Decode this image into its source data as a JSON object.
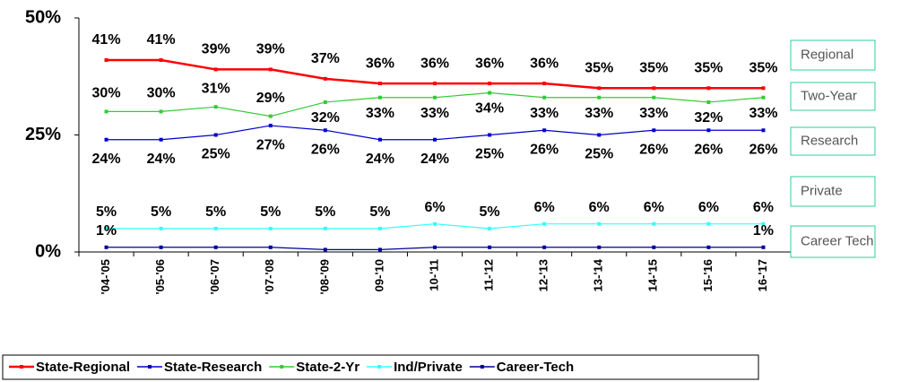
{
  "chart_data": {
    "type": "line",
    "categories": [
      "'04-'05",
      "'05-'06",
      "'06-'07",
      "'07-'08",
      "'08-'09",
      "09-'10",
      "10-'11",
      "11-'12",
      "12-'13",
      "13-'14",
      "14-'15",
      "15-'16",
      "16-'17"
    ],
    "series": [
      {
        "name": "State-Regional",
        "color": "#ff0000",
        "values": [
          41,
          41,
          39,
          39,
          37,
          36,
          36,
          36,
          36,
          35,
          35,
          35,
          35
        ],
        "value_labels": [
          "41%",
          "41%",
          "39%",
          "39%",
          "37%",
          "36%",
          "36%",
          "36%",
          "36%",
          "35%",
          "35%",
          "35%",
          "35%"
        ]
      },
      {
        "name": "State-Research",
        "color": "#0000cc",
        "values": [
          24,
          24,
          25,
          27,
          26,
          24,
          24,
          25,
          26,
          25,
          26,
          26,
          26
        ],
        "value_labels": [
          "24%",
          "24%",
          "25%",
          "27%",
          "26%",
          "24%",
          "24%",
          "25%",
          "26%",
          "25%",
          "26%",
          "26%",
          "26%"
        ]
      },
      {
        "name": "State-2-Yr",
        "color": "#33cc33",
        "values": [
          30,
          30,
          31,
          29,
          32,
          33,
          33,
          34,
          33,
          33,
          33,
          32,
          33
        ],
        "value_labels": [
          "30%",
          "30%",
          "31%",
          "29%",
          "32%",
          "33%",
          "33%",
          "34%",
          "33%",
          "33%",
          "33%",
          "32%",
          "33%"
        ]
      },
      {
        "name": "Ind/Private",
        "color": "#33ffff",
        "values": [
          5,
          5,
          5,
          5,
          5,
          5,
          6,
          5,
          6,
          6,
          6,
          6,
          6
        ],
        "value_labels": [
          "5%",
          "5%",
          "5%",
          "5%",
          "5%",
          "5%",
          "6%",
          "5%",
          "6%",
          "6%",
          "6%",
          "6%",
          "6%"
        ]
      },
      {
        "name": "Career-Tech",
        "color": "#000099",
        "values": [
          1,
          1,
          1,
          1,
          0.5,
          0.5,
          1,
          1,
          1,
          1,
          1,
          1,
          1
        ],
        "value_labels": [
          "1%",
          null,
          null,
          null,
          null,
          null,
          null,
          null,
          null,
          null,
          null,
          null,
          "1%"
        ]
      }
    ],
    "annotations": [
      "Regional",
      "Two-Year",
      "Research",
      "Private",
      "Career Tech"
    ],
    "ylim": [
      0,
      50
    ],
    "yticks": [
      {
        "value": 0,
        "label": "0%"
      },
      {
        "value": 25,
        "label": "25%"
      },
      {
        "value": 50,
        "label": "50%"
      }
    ],
    "legend": "bottom"
  }
}
